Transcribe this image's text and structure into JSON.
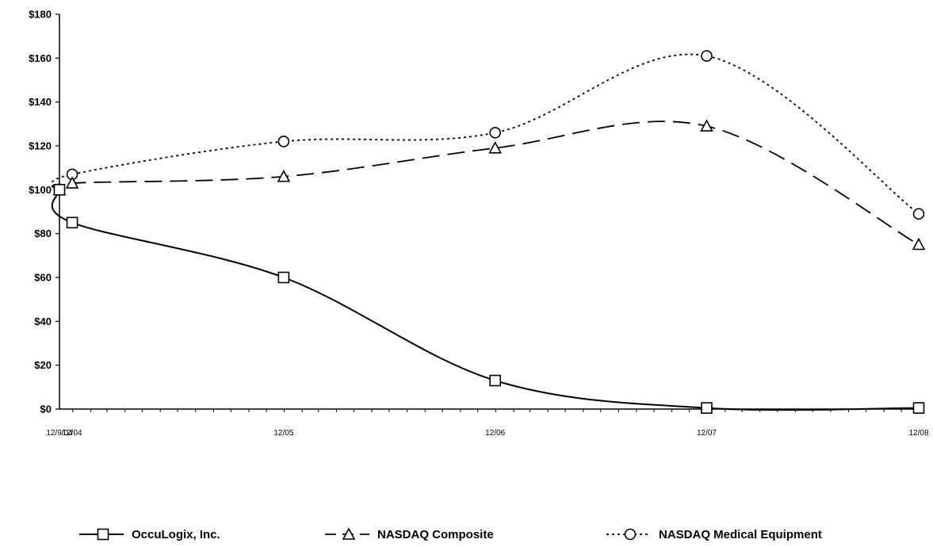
{
  "chart_data": {
    "type": "line",
    "categories": [
      "12/9/04",
      "12/04",
      "12/05",
      "12/06",
      "12/07",
      "12/08"
    ],
    "x_dates": [
      "2004-12-09",
      "2004-12-31",
      "2005-12-31",
      "2006-12-31",
      "2007-12-31",
      "2008-12-31"
    ],
    "ylim": [
      0,
      180
    ],
    "yticks": [
      "$0",
      "$20",
      "$40",
      "$60",
      "$80",
      "$100",
      "$120",
      "$140",
      "$160",
      "$180"
    ],
    "ytick_values": [
      0,
      20,
      40,
      60,
      80,
      100,
      120,
      140,
      160,
      180
    ],
    "grid": false,
    "legend_position": "bottom",
    "series": [
      {
        "name": "OccuLogix, Inc.",
        "marker": "square",
        "line_style": "solid",
        "color": "#000000",
        "values": [
          100,
          85,
          60,
          13,
          0.5,
          0.5
        ]
      },
      {
        "name": "NASDAQ Composite",
        "marker": "triangle",
        "line_style": "dashed",
        "color": "#000000",
        "values": [
          100,
          103,
          106,
          119,
          129,
          75
        ]
      },
      {
        "name": "NASDAQ Medical Equipment",
        "marker": "circle",
        "line_style": "dotted",
        "color": "#000000",
        "values": [
          100,
          107,
          122,
          126,
          161,
          89
        ]
      }
    ]
  }
}
